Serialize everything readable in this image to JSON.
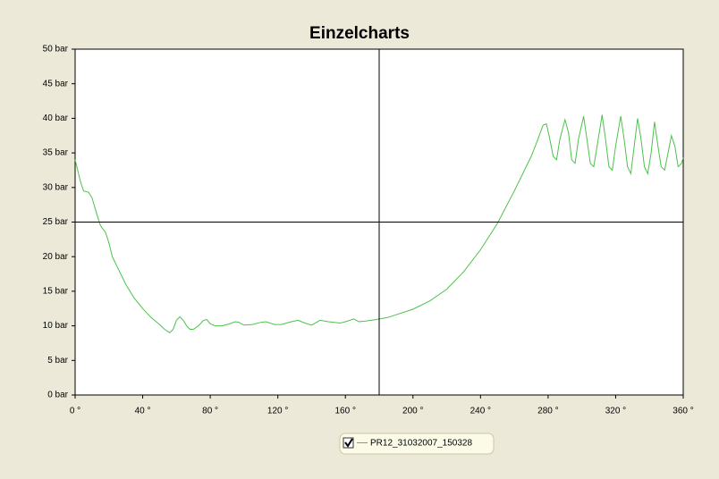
{
  "chart_data": {
    "type": "line",
    "title": "Einzelcharts",
    "x": [
      0,
      3,
      5,
      8,
      10,
      13,
      15,
      18,
      20,
      22,
      25,
      30,
      35,
      40,
      45,
      50,
      53,
      56,
      58,
      60,
      62,
      64,
      66,
      68,
      70,
      73,
      76,
      78,
      80,
      83,
      87,
      90,
      95,
      97,
      100,
      105,
      110,
      113,
      118,
      122,
      128,
      132,
      136,
      140,
      145,
      150,
      157,
      160,
      165,
      168,
      172,
      178,
      185,
      190,
      200,
      210,
      220,
      230,
      240,
      250,
      260,
      270,
      274,
      277,
      279,
      281,
      283,
      285,
      287,
      290,
      292,
      294,
      296,
      298,
      301,
      303,
      305,
      307,
      309,
      312,
      314,
      316,
      318,
      320,
      323,
      325,
      327,
      329,
      331,
      333,
      335,
      337,
      339,
      341,
      343,
      345,
      347,
      349,
      351,
      353,
      355,
      357,
      359,
      360
    ],
    "series": [
      {
        "name": "PR12_31032007_150328",
        "color": "#4cc24c",
        "values": [
          34,
          31,
          29.5,
          29.3,
          28.5,
          26,
          24.5,
          23.5,
          22,
          20,
          18.5,
          16,
          14,
          12.5,
          11.2,
          10.2,
          9.5,
          9,
          9.5,
          10.8,
          11.3,
          10.8,
          10,
          9.5,
          9.5,
          10,
          10.8,
          10.9,
          10.3,
          10,
          10,
          10.2,
          10.6,
          10.5,
          10.1,
          10.2,
          10.5,
          10.6,
          10.2,
          10.2,
          10.6,
          10.8,
          10.4,
          10.1,
          10.8,
          10.6,
          10.4,
          10.6,
          11,
          10.6,
          10.7,
          10.9,
          11.2,
          11.6,
          12.4,
          13.6,
          15.3,
          17.8,
          21,
          24.8,
          29.5,
          34.5,
          37,
          39,
          39.2,
          37,
          34.5,
          34,
          37,
          39.8,
          38,
          34,
          33.5,
          37,
          40.3,
          37,
          33.5,
          33,
          36,
          40.5,
          37,
          33,
          32.5,
          36,
          40.3,
          37,
          33,
          32,
          36,
          40,
          37,
          33,
          32,
          35,
          39.5,
          36,
          33,
          32.5,
          35,
          37.5,
          36,
          33,
          33.5,
          34.3
        ]
      }
    ],
    "xlim": [
      0,
      360
    ],
    "ylim": [
      0,
      50
    ],
    "xticks": [
      {
        "value": 0,
        "label": "0 °"
      },
      {
        "value": 40,
        "label": "40 °"
      },
      {
        "value": 80,
        "label": "80 °"
      },
      {
        "value": 120,
        "label": "120 °"
      },
      {
        "value": 160,
        "label": "160 °"
      },
      {
        "value": 200,
        "label": "200 °"
      },
      {
        "value": 240,
        "label": "240 °"
      },
      {
        "value": 280,
        "label": "280 °"
      },
      {
        "value": 320,
        "label": "320 °"
      },
      {
        "value": 360,
        "label": "360 °"
      }
    ],
    "yticks": [
      {
        "value": 0,
        "label": "0 bar"
      },
      {
        "value": 5,
        "label": "5 bar"
      },
      {
        "value": 10,
        "label": "10 bar"
      },
      {
        "value": 15,
        "label": "15 bar"
      },
      {
        "value": 20,
        "label": "20 bar"
      },
      {
        "value": 25,
        "label": "25 bar"
      },
      {
        "value": 30,
        "label": "30 bar"
      },
      {
        "value": 35,
        "label": "35 bar"
      },
      {
        "value": 40,
        "label": "40 bar"
      },
      {
        "value": 45,
        "label": "45 bar"
      },
      {
        "value": 50,
        "label": "50 bar"
      }
    ],
    "crosshair": {
      "x": 180,
      "y": 25
    }
  }
}
